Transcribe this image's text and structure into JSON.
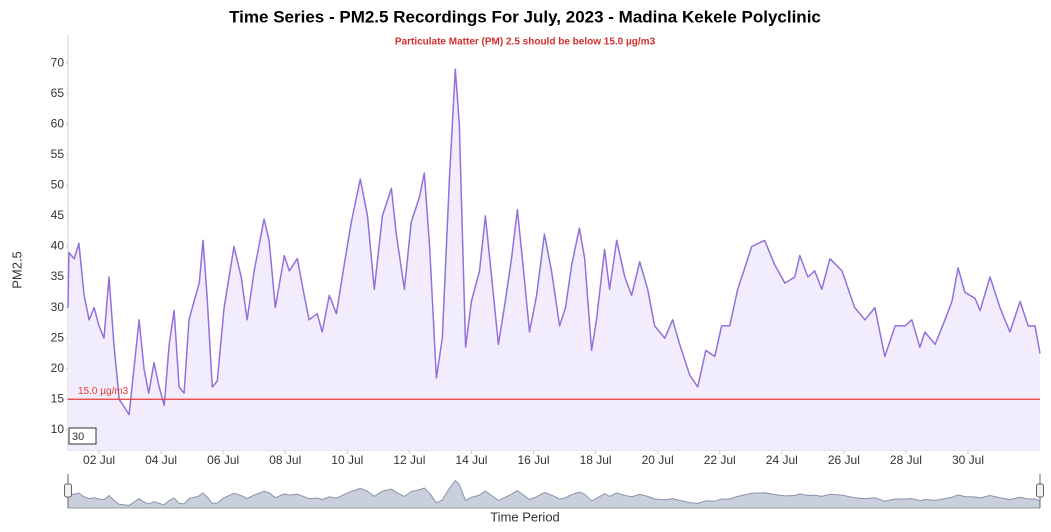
{
  "chart_data": {
    "type": "area",
    "title": "Time Series - PM2.5 Recordings For July, 2023 - Madina Kekele Polyclinic",
    "subtitle": "Particulate Matter (PM) 2.5 should be below 15.0 µg/m3",
    "x_label": "Time Period",
    "y_label": "PM2.5",
    "rolling_period": 30,
    "threshold": {
      "value": 15,
      "label": "15.0 µg/m3",
      "color": "#e53935"
    },
    "color": "#9370db",
    "fill": "#f2edfc",
    "xlim": [
      1,
      32.32
    ],
    "xticks": [
      {
        "value": 2,
        "label": "02 Jul"
      },
      {
        "value": 4,
        "label": "04 Jul"
      },
      {
        "value": 6,
        "label": "06 Jul"
      },
      {
        "value": 8,
        "label": "08 Jul"
      },
      {
        "value": 10,
        "label": "10 Jul"
      },
      {
        "value": 12,
        "label": "12 Jul"
      },
      {
        "value": 14,
        "label": "14 Jul"
      },
      {
        "value": 16,
        "label": "16 Jul"
      },
      {
        "value": 18,
        "label": "18 Jul"
      },
      {
        "value": 20,
        "label": "20 Jul"
      },
      {
        "value": 22,
        "label": "22 Jul"
      },
      {
        "value": 24,
        "label": "24 Jul"
      },
      {
        "value": 26,
        "label": "26 Jul"
      },
      {
        "value": 28,
        "label": "28 Jul"
      },
      {
        "value": 30,
        "label": "30 Jul"
      }
    ],
    "ylim": [
      6.7,
      74.6
    ],
    "yticks": [
      10,
      15,
      20,
      25,
      30,
      35,
      40,
      45,
      50,
      55,
      60,
      65,
      70
    ],
    "x": [
      1.0,
      1.03,
      1.2,
      1.35,
      1.52,
      1.68,
      1.84,
      2.0,
      2.16,
      2.32,
      2.48,
      2.65,
      2.97,
      3.29,
      3.45,
      3.6,
      3.77,
      3.94,
      4.1,
      4.26,
      4.42,
      4.58,
      4.74,
      4.9,
      5.06,
      5.23,
      5.35,
      5.48,
      5.65,
      5.81,
      6.03,
      6.35,
      6.58,
      6.77,
      7.0,
      7.32,
      7.48,
      7.68,
      7.97,
      8.13,
      8.39,
      8.61,
      8.77,
      9.03,
      9.19,
      9.42,
      9.65,
      9.9,
      10.13,
      10.42,
      10.65,
      10.87,
      11.13,
      11.42,
      11.58,
      11.84,
      12.06,
      12.32,
      12.48,
      12.65,
      12.87,
      13.06,
      13.29,
      13.48,
      13.61,
      13.81,
      14.0,
      14.26,
      14.45,
      14.65,
      14.87,
      15.06,
      15.29,
      15.48,
      15.68,
      15.87,
      16.1,
      16.35,
      16.58,
      16.84,
      17.03,
      17.23,
      17.48,
      17.65,
      17.87,
      18.03,
      18.29,
      18.45,
      18.68,
      18.94,
      19.16,
      19.42,
      19.68,
      19.9,
      20.23,
      20.48,
      20.71,
      21.03,
      21.29,
      21.55,
      21.84,
      22.06,
      22.32,
      22.58,
      22.84,
      23.03,
      23.45,
      23.77,
      24.1,
      24.42,
      24.58,
      24.84,
      25.06,
      25.29,
      25.55,
      25.94,
      26.35,
      26.68,
      27.0,
      27.32,
      27.65,
      27.97,
      28.19,
      28.45,
      28.61,
      28.94,
      29.26,
      29.48,
      29.68,
      29.9,
      30.23,
      30.39,
      30.71,
      31.03,
      31.35,
      31.68,
      31.94,
      32.16,
      32.32
    ],
    "values": [
      30,
      39,
      38,
      40.5,
      32,
      28,
      30,
      27,
      25,
      35,
      24,
      15,
      12.5,
      28,
      20,
      16,
      21,
      17,
      14,
      24,
      29.5,
      17,
      16,
      28,
      31,
      34,
      41,
      32,
      17,
      18,
      30,
      40,
      35,
      28,
      36,
      44.5,
      41,
      30,
      38.5,
      36,
      38,
      32,
      28,
      29,
      26,
      32,
      29,
      37,
      44,
      51,
      45,
      33,
      45,
      49.5,
      42,
      33,
      44,
      48,
      52,
      40,
      18.5,
      25,
      51,
      69,
      60,
      23.5,
      31,
      36,
      45,
      35,
      24,
      30,
      38,
      46,
      36,
      26,
      32,
      42,
      36,
      27,
      30,
      37,
      43,
      38,
      23,
      28,
      39.5,
      33,
      41,
      35,
      32,
      37.5,
      33,
      27,
      25,
      28,
      24,
      19,
      17,
      23,
      22,
      27,
      27,
      33,
      37,
      40,
      41,
      37,
      34,
      35,
      38.5,
      35,
      36,
      33,
      38,
      36,
      30,
      28,
      30,
      22,
      27,
      27,
      28,
      23.5,
      26,
      24,
      28,
      31,
      36.5,
      32.5,
      31.5,
      29.5,
      35,
      30,
      26,
      31,
      27,
      27,
      22.5
    ]
  }
}
